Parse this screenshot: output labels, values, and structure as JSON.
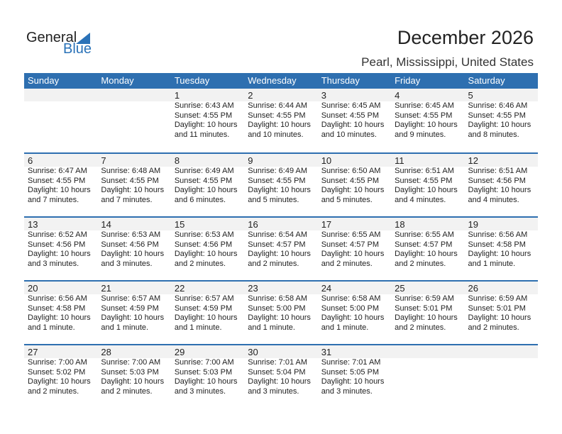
{
  "logo": {
    "text1": "General",
    "text2": "Blue"
  },
  "title": "December 2026",
  "location": "Pearl, Mississippi, United States",
  "colors": {
    "accent": "#2e6fb0",
    "band": "#f2f2f2"
  },
  "weekdays": [
    "Sunday",
    "Monday",
    "Tuesday",
    "Wednesday",
    "Thursday",
    "Friday",
    "Saturday"
  ],
  "weeks": [
    [
      null,
      null,
      {
        "day": "1",
        "sunrise": "Sunrise: 6:43 AM",
        "sunset": "Sunset: 4:55 PM",
        "daylight1": "Daylight: 10 hours",
        "daylight2": "and 11 minutes."
      },
      {
        "day": "2",
        "sunrise": "Sunrise: 6:44 AM",
        "sunset": "Sunset: 4:55 PM",
        "daylight1": "Daylight: 10 hours",
        "daylight2": "and 10 minutes."
      },
      {
        "day": "3",
        "sunrise": "Sunrise: 6:45 AM",
        "sunset": "Sunset: 4:55 PM",
        "daylight1": "Daylight: 10 hours",
        "daylight2": "and 10 minutes."
      },
      {
        "day": "4",
        "sunrise": "Sunrise: 6:45 AM",
        "sunset": "Sunset: 4:55 PM",
        "daylight1": "Daylight: 10 hours",
        "daylight2": "and 9 minutes."
      },
      {
        "day": "5",
        "sunrise": "Sunrise: 6:46 AM",
        "sunset": "Sunset: 4:55 PM",
        "daylight1": "Daylight: 10 hours",
        "daylight2": "and 8 minutes."
      }
    ],
    [
      {
        "day": "6",
        "sunrise": "Sunrise: 6:47 AM",
        "sunset": "Sunset: 4:55 PM",
        "daylight1": "Daylight: 10 hours",
        "daylight2": "and 7 minutes."
      },
      {
        "day": "7",
        "sunrise": "Sunrise: 6:48 AM",
        "sunset": "Sunset: 4:55 PM",
        "daylight1": "Daylight: 10 hours",
        "daylight2": "and 7 minutes."
      },
      {
        "day": "8",
        "sunrise": "Sunrise: 6:49 AM",
        "sunset": "Sunset: 4:55 PM",
        "daylight1": "Daylight: 10 hours",
        "daylight2": "and 6 minutes."
      },
      {
        "day": "9",
        "sunrise": "Sunrise: 6:49 AM",
        "sunset": "Sunset: 4:55 PM",
        "daylight1": "Daylight: 10 hours",
        "daylight2": "and 5 minutes."
      },
      {
        "day": "10",
        "sunrise": "Sunrise: 6:50 AM",
        "sunset": "Sunset: 4:55 PM",
        "daylight1": "Daylight: 10 hours",
        "daylight2": "and 5 minutes."
      },
      {
        "day": "11",
        "sunrise": "Sunrise: 6:51 AM",
        "sunset": "Sunset: 4:55 PM",
        "daylight1": "Daylight: 10 hours",
        "daylight2": "and 4 minutes."
      },
      {
        "day": "12",
        "sunrise": "Sunrise: 6:51 AM",
        "sunset": "Sunset: 4:56 PM",
        "daylight1": "Daylight: 10 hours",
        "daylight2": "and 4 minutes."
      }
    ],
    [
      {
        "day": "13",
        "sunrise": "Sunrise: 6:52 AM",
        "sunset": "Sunset: 4:56 PM",
        "daylight1": "Daylight: 10 hours",
        "daylight2": "and 3 minutes."
      },
      {
        "day": "14",
        "sunrise": "Sunrise: 6:53 AM",
        "sunset": "Sunset: 4:56 PM",
        "daylight1": "Daylight: 10 hours",
        "daylight2": "and 3 minutes."
      },
      {
        "day": "15",
        "sunrise": "Sunrise: 6:53 AM",
        "sunset": "Sunset: 4:56 PM",
        "daylight1": "Daylight: 10 hours",
        "daylight2": "and 2 minutes."
      },
      {
        "day": "16",
        "sunrise": "Sunrise: 6:54 AM",
        "sunset": "Sunset: 4:57 PM",
        "daylight1": "Daylight: 10 hours",
        "daylight2": "and 2 minutes."
      },
      {
        "day": "17",
        "sunrise": "Sunrise: 6:55 AM",
        "sunset": "Sunset: 4:57 PM",
        "daylight1": "Daylight: 10 hours",
        "daylight2": "and 2 minutes."
      },
      {
        "day": "18",
        "sunrise": "Sunrise: 6:55 AM",
        "sunset": "Sunset: 4:57 PM",
        "daylight1": "Daylight: 10 hours",
        "daylight2": "and 2 minutes."
      },
      {
        "day": "19",
        "sunrise": "Sunrise: 6:56 AM",
        "sunset": "Sunset: 4:58 PM",
        "daylight1": "Daylight: 10 hours",
        "daylight2": "and 1 minute."
      }
    ],
    [
      {
        "day": "20",
        "sunrise": "Sunrise: 6:56 AM",
        "sunset": "Sunset: 4:58 PM",
        "daylight1": "Daylight: 10 hours",
        "daylight2": "and 1 minute."
      },
      {
        "day": "21",
        "sunrise": "Sunrise: 6:57 AM",
        "sunset": "Sunset: 4:59 PM",
        "daylight1": "Daylight: 10 hours",
        "daylight2": "and 1 minute."
      },
      {
        "day": "22",
        "sunrise": "Sunrise: 6:57 AM",
        "sunset": "Sunset: 4:59 PM",
        "daylight1": "Daylight: 10 hours",
        "daylight2": "and 1 minute."
      },
      {
        "day": "23",
        "sunrise": "Sunrise: 6:58 AM",
        "sunset": "Sunset: 5:00 PM",
        "daylight1": "Daylight: 10 hours",
        "daylight2": "and 1 minute."
      },
      {
        "day": "24",
        "sunrise": "Sunrise: 6:58 AM",
        "sunset": "Sunset: 5:00 PM",
        "daylight1": "Daylight: 10 hours",
        "daylight2": "and 1 minute."
      },
      {
        "day": "25",
        "sunrise": "Sunrise: 6:59 AM",
        "sunset": "Sunset: 5:01 PM",
        "daylight1": "Daylight: 10 hours",
        "daylight2": "and 2 minutes."
      },
      {
        "day": "26",
        "sunrise": "Sunrise: 6:59 AM",
        "sunset": "Sunset: 5:01 PM",
        "daylight1": "Daylight: 10 hours",
        "daylight2": "and 2 minutes."
      }
    ],
    [
      {
        "day": "27",
        "sunrise": "Sunrise: 7:00 AM",
        "sunset": "Sunset: 5:02 PM",
        "daylight1": "Daylight: 10 hours",
        "daylight2": "and 2 minutes."
      },
      {
        "day": "28",
        "sunrise": "Sunrise: 7:00 AM",
        "sunset": "Sunset: 5:03 PM",
        "daylight1": "Daylight: 10 hours",
        "daylight2": "and 2 minutes."
      },
      {
        "day": "29",
        "sunrise": "Sunrise: 7:00 AM",
        "sunset": "Sunset: 5:03 PM",
        "daylight1": "Daylight: 10 hours",
        "daylight2": "and 3 minutes."
      },
      {
        "day": "30",
        "sunrise": "Sunrise: 7:01 AM",
        "sunset": "Sunset: 5:04 PM",
        "daylight1": "Daylight: 10 hours",
        "daylight2": "and 3 minutes."
      },
      {
        "day": "31",
        "sunrise": "Sunrise: 7:01 AM",
        "sunset": "Sunset: 5:05 PM",
        "daylight1": "Daylight: 10 hours",
        "daylight2": "and 3 minutes."
      },
      null,
      null
    ]
  ]
}
